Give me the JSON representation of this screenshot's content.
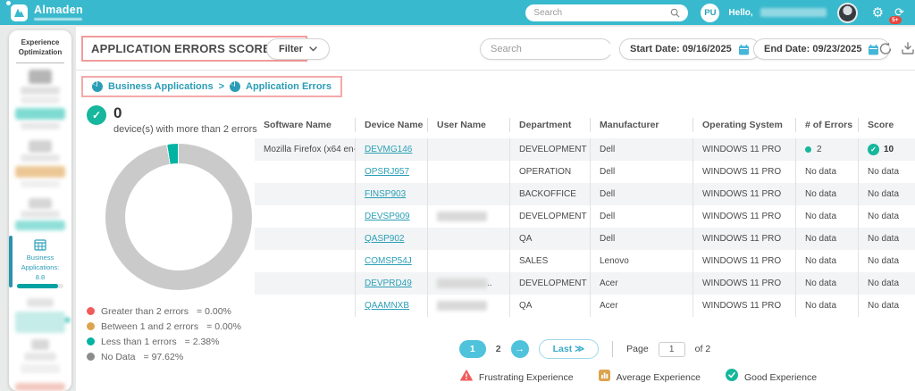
{
  "colors": {
    "header_bg": "#39b9cd",
    "accent_teal": "#2a9db6",
    "donut_teal": "#00b3a2",
    "donut_gray": "#cacaca",
    "red": "#f15b5b",
    "orange": "#dca44e",
    "gray_dot": "#8c8c8c",
    "highlight_outline": "#f29b9b",
    "active_page_bg": "#4fc3dc"
  },
  "header": {
    "brand": "Almaden",
    "search_placeholder": "Search",
    "user_initials": "PU",
    "greeting": "Hello,",
    "notification_badge": "5+"
  },
  "sidebar": {
    "title": "Experience Optimization",
    "active_item": {
      "label": "Business Applications:",
      "score": "8.8",
      "progress_pct": 88
    }
  },
  "toolbar": {
    "title": "APPLICATION ERRORS SCORE",
    "filter_label": "Filter",
    "search_placeholder": "Search",
    "start_date_text": "Start Date: 09/16/2025",
    "end_date_text": "End Date: 09/23/2025"
  },
  "breadcrumb": {
    "parent": "Business Applications",
    "separator": ">",
    "current": "Application Errors"
  },
  "summary": {
    "count": "0",
    "caption": "device(s) with more than 2 errors"
  },
  "chart_data": {
    "type": "pie",
    "donut": true,
    "legend_position": "bottom-left",
    "slices": [
      {
        "label": "Greater than 2 errors",
        "value": 0.0,
        "value_text": "= 0.00%",
        "color": "#f15b5b"
      },
      {
        "label": "Between 1 and 2 errors",
        "value": 0.0,
        "value_text": "= 0.00%",
        "color": "#dca44e"
      },
      {
        "label": "Less than 1 errors",
        "value": 2.38,
        "value_text": "= 2.38%",
        "color": "#00b3a2"
      },
      {
        "label": "No Data",
        "value": 97.62,
        "value_text": "= 97.62%",
        "color": "#8c8c8c"
      }
    ],
    "ring_color_for_no_data": "#cacaca"
  },
  "table": {
    "columns": [
      "Software Name",
      "Device Name",
      "User Name",
      "Department",
      "Manufacturer",
      "Operating System",
      "# of Errors",
      "Score"
    ],
    "rows": [
      {
        "software": "Mozilla Firefox (x64 en-…",
        "device": "DEVMG146",
        "user_redacted": false,
        "department": "DEVELOPMENT",
        "manufacturer": "Dell",
        "os": "WINDOWS 11 PRO",
        "errors": "2",
        "errors_has_dot": true,
        "score": "10",
        "score_has_check": true
      },
      {
        "software": "",
        "device": "OPSRJ957",
        "user_redacted": false,
        "department": "OPERATION",
        "manufacturer": "Dell",
        "os": "WINDOWS 11 PRO",
        "errors": "No data",
        "errors_has_dot": false,
        "score": "No data",
        "score_has_check": false
      },
      {
        "software": "",
        "device": "FINSP903",
        "user_redacted": false,
        "department": "BACKOFFICE",
        "manufacturer": "Dell",
        "os": "WINDOWS 11 PRO",
        "errors": "No data",
        "errors_has_dot": false,
        "score": "No data",
        "score_has_check": false
      },
      {
        "software": "",
        "device": "DEVSP909",
        "user_redacted": true,
        "department": "DEVELOPMENT",
        "manufacturer": "Dell",
        "os": "WINDOWS 11 PRO",
        "errors": "No data",
        "errors_has_dot": false,
        "score": "No data",
        "score_has_check": false
      },
      {
        "software": "",
        "device": "QASP902",
        "user_redacted": false,
        "department": "QA",
        "manufacturer": "Dell",
        "os": "WINDOWS 11 PRO",
        "errors": "No data",
        "errors_has_dot": false,
        "score": "No data",
        "score_has_check": false
      },
      {
        "software": "",
        "device": "COMSP54J",
        "user_redacted": false,
        "department": "SALES",
        "manufacturer": "Lenovo",
        "os": "WINDOWS 11 PRO",
        "errors": "No data",
        "errors_has_dot": false,
        "score": "No data",
        "score_has_check": false
      },
      {
        "software": "",
        "device": "DEVPRD49",
        "user_redacted": true,
        "user_suffix": "..",
        "department": "DEVELOPMENT",
        "manufacturer": "Acer",
        "os": "WINDOWS 11 PRO",
        "errors": "No data",
        "errors_has_dot": false,
        "score": "No data",
        "score_has_check": false
      },
      {
        "software": "",
        "device": "QAAMNXB",
        "user_redacted": true,
        "department": "QA",
        "manufacturer": "Acer",
        "os": "WINDOWS 11 PRO",
        "errors": "No data",
        "errors_has_dot": false,
        "score": "No data",
        "score_has_check": false
      }
    ]
  },
  "pagination": {
    "page1": "1",
    "page2": "2",
    "next_symbol": "→",
    "last_label": "Last ≫",
    "page_label": "Page",
    "page_input": "1",
    "of_label": "of 2"
  },
  "experience_legend": [
    {
      "icon": "warning-triangle-icon",
      "label": "Frustrating Experience",
      "color": "#f15b5b"
    },
    {
      "icon": "bar-chart-icon",
      "label": "Average Experience",
      "color": "#dca44e"
    },
    {
      "icon": "check-circle-icon",
      "label": "Good Experience",
      "color": "#16b79c"
    }
  ]
}
